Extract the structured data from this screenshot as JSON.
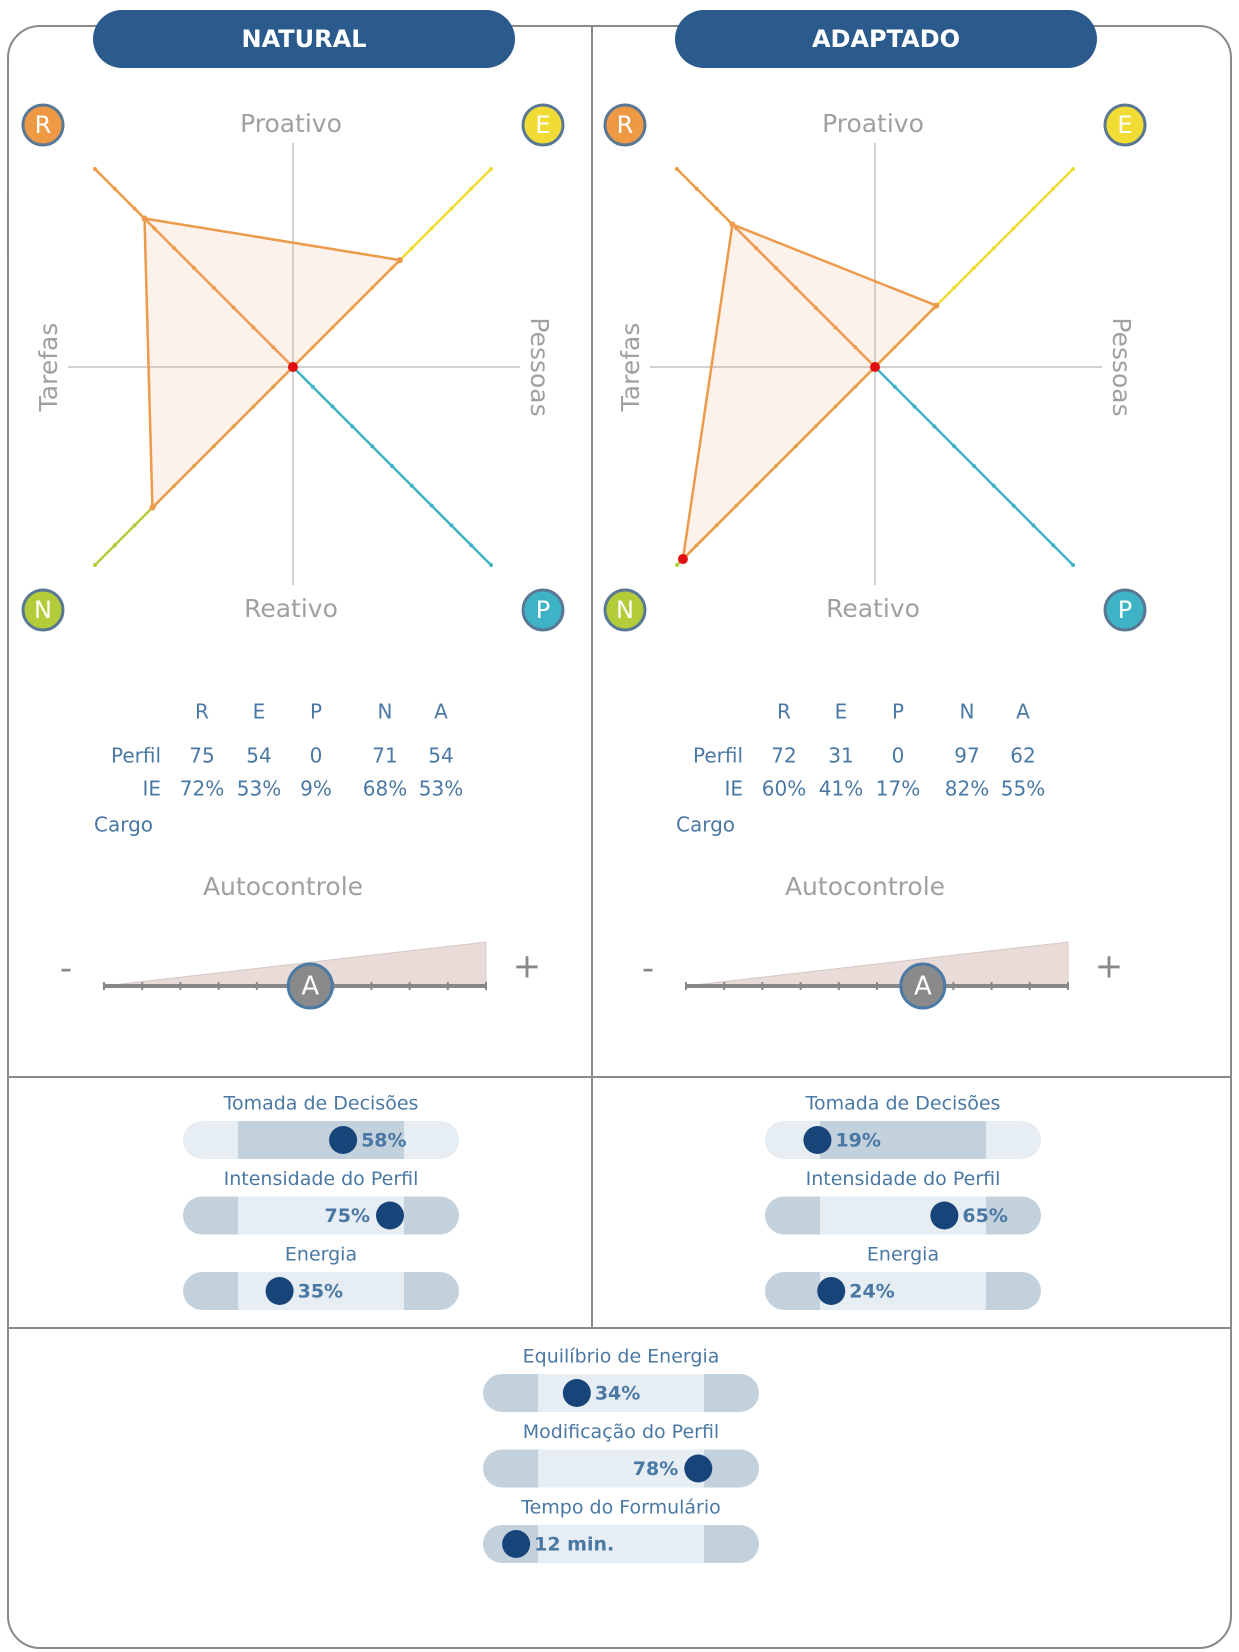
{
  "panels": [
    {
      "title": "NATURAL",
      "axes": {
        "top": "Proativo",
        "bottom": "Reativo",
        "left": "Tarefas",
        "right": "Pessoas"
      },
      "table": {
        "columns": [
          "R",
          "E",
          "P",
          "N",
          "A"
        ],
        "rows": [
          {
            "label": "Perfil",
            "values": [
              75,
              54,
              0,
              71,
              54
            ]
          },
          {
            "label": "IE",
            "values": [
              72,
              53,
              9,
              68,
              53
            ],
            "value_labels": [
              "72%",
              "53%",
              "9%",
              "68%",
              "53%"
            ],
            "colors": [
              "#4a78a4",
              "#4a78a4",
              "#e03a3a",
              "#4a78a4",
              "#4a78a4"
            ]
          },
          {
            "label": "Cargo"
          }
        ]
      },
      "autocontrole": {
        "title": "Autocontrole",
        "minus": "-",
        "plus": "+",
        "marker": "A"
      },
      "metrics": [
        {
          "name": "Tomada de Decisões",
          "value": 58,
          "value_label": "58%",
          "shade": "middle"
        },
        {
          "name": "Intensidade do Perfil",
          "value": 75,
          "value_label": "75%",
          "shade": "ends"
        },
        {
          "name": "Energia",
          "value": 35,
          "value_label": "35%",
          "shade": "ends"
        }
      ]
    },
    {
      "title": "ADAPTADO",
      "axes": {
        "top": "Proativo",
        "bottom": "Reativo",
        "left": "Tarefas",
        "right": "Pessoas"
      },
      "table": {
        "columns": [
          "R",
          "E",
          "P",
          "N",
          "A"
        ],
        "rows": [
          {
            "label": "Perfil",
            "values": [
              72,
              31,
              0,
              97,
              62
            ]
          },
          {
            "label": "IE",
            "values": [
              60,
              41,
              17,
              82,
              55
            ],
            "value_labels": [
              "60%",
              "41%",
              "17%",
              "82%",
              "55%"
            ],
            "colors": [
              "#4a78a4",
              "#4a78a4",
              "#e03a3a",
              "#e03a3a",
              "#4a78a4"
            ]
          },
          {
            "label": "Cargo"
          }
        ]
      },
      "autocontrole": {
        "title": "Autocontrole",
        "minus": "-",
        "plus": "+",
        "marker": "A"
      },
      "metrics": [
        {
          "name": "Tomada de Decisões",
          "value": 19,
          "value_label": "19%",
          "shade": "middle"
        },
        {
          "name": "Intensidade do Perfil",
          "value": 65,
          "value_label": "65%",
          "shade": "ends"
        },
        {
          "name": "Energia",
          "value": 24,
          "value_label": "24%",
          "shade": "ends"
        }
      ]
    }
  ],
  "summary": [
    {
      "name": "Equilíbrio de Energia",
      "value": 34,
      "value_label": "34%",
      "shade": "ends"
    },
    {
      "name": "Modificação do Perfil",
      "value": 78,
      "value_label": "78%",
      "shade": "ends"
    },
    {
      "name": "Tempo do Formulário",
      "value": 12,
      "value_label": "12 min.",
      "shade": "ends"
    }
  ],
  "axis_colors": {
    "R": "#ee9a45",
    "E": "#f0dc35",
    "P": "#3fb3c6",
    "N": "#b3cc3a",
    "A": "#8a8a8a"
  }
}
